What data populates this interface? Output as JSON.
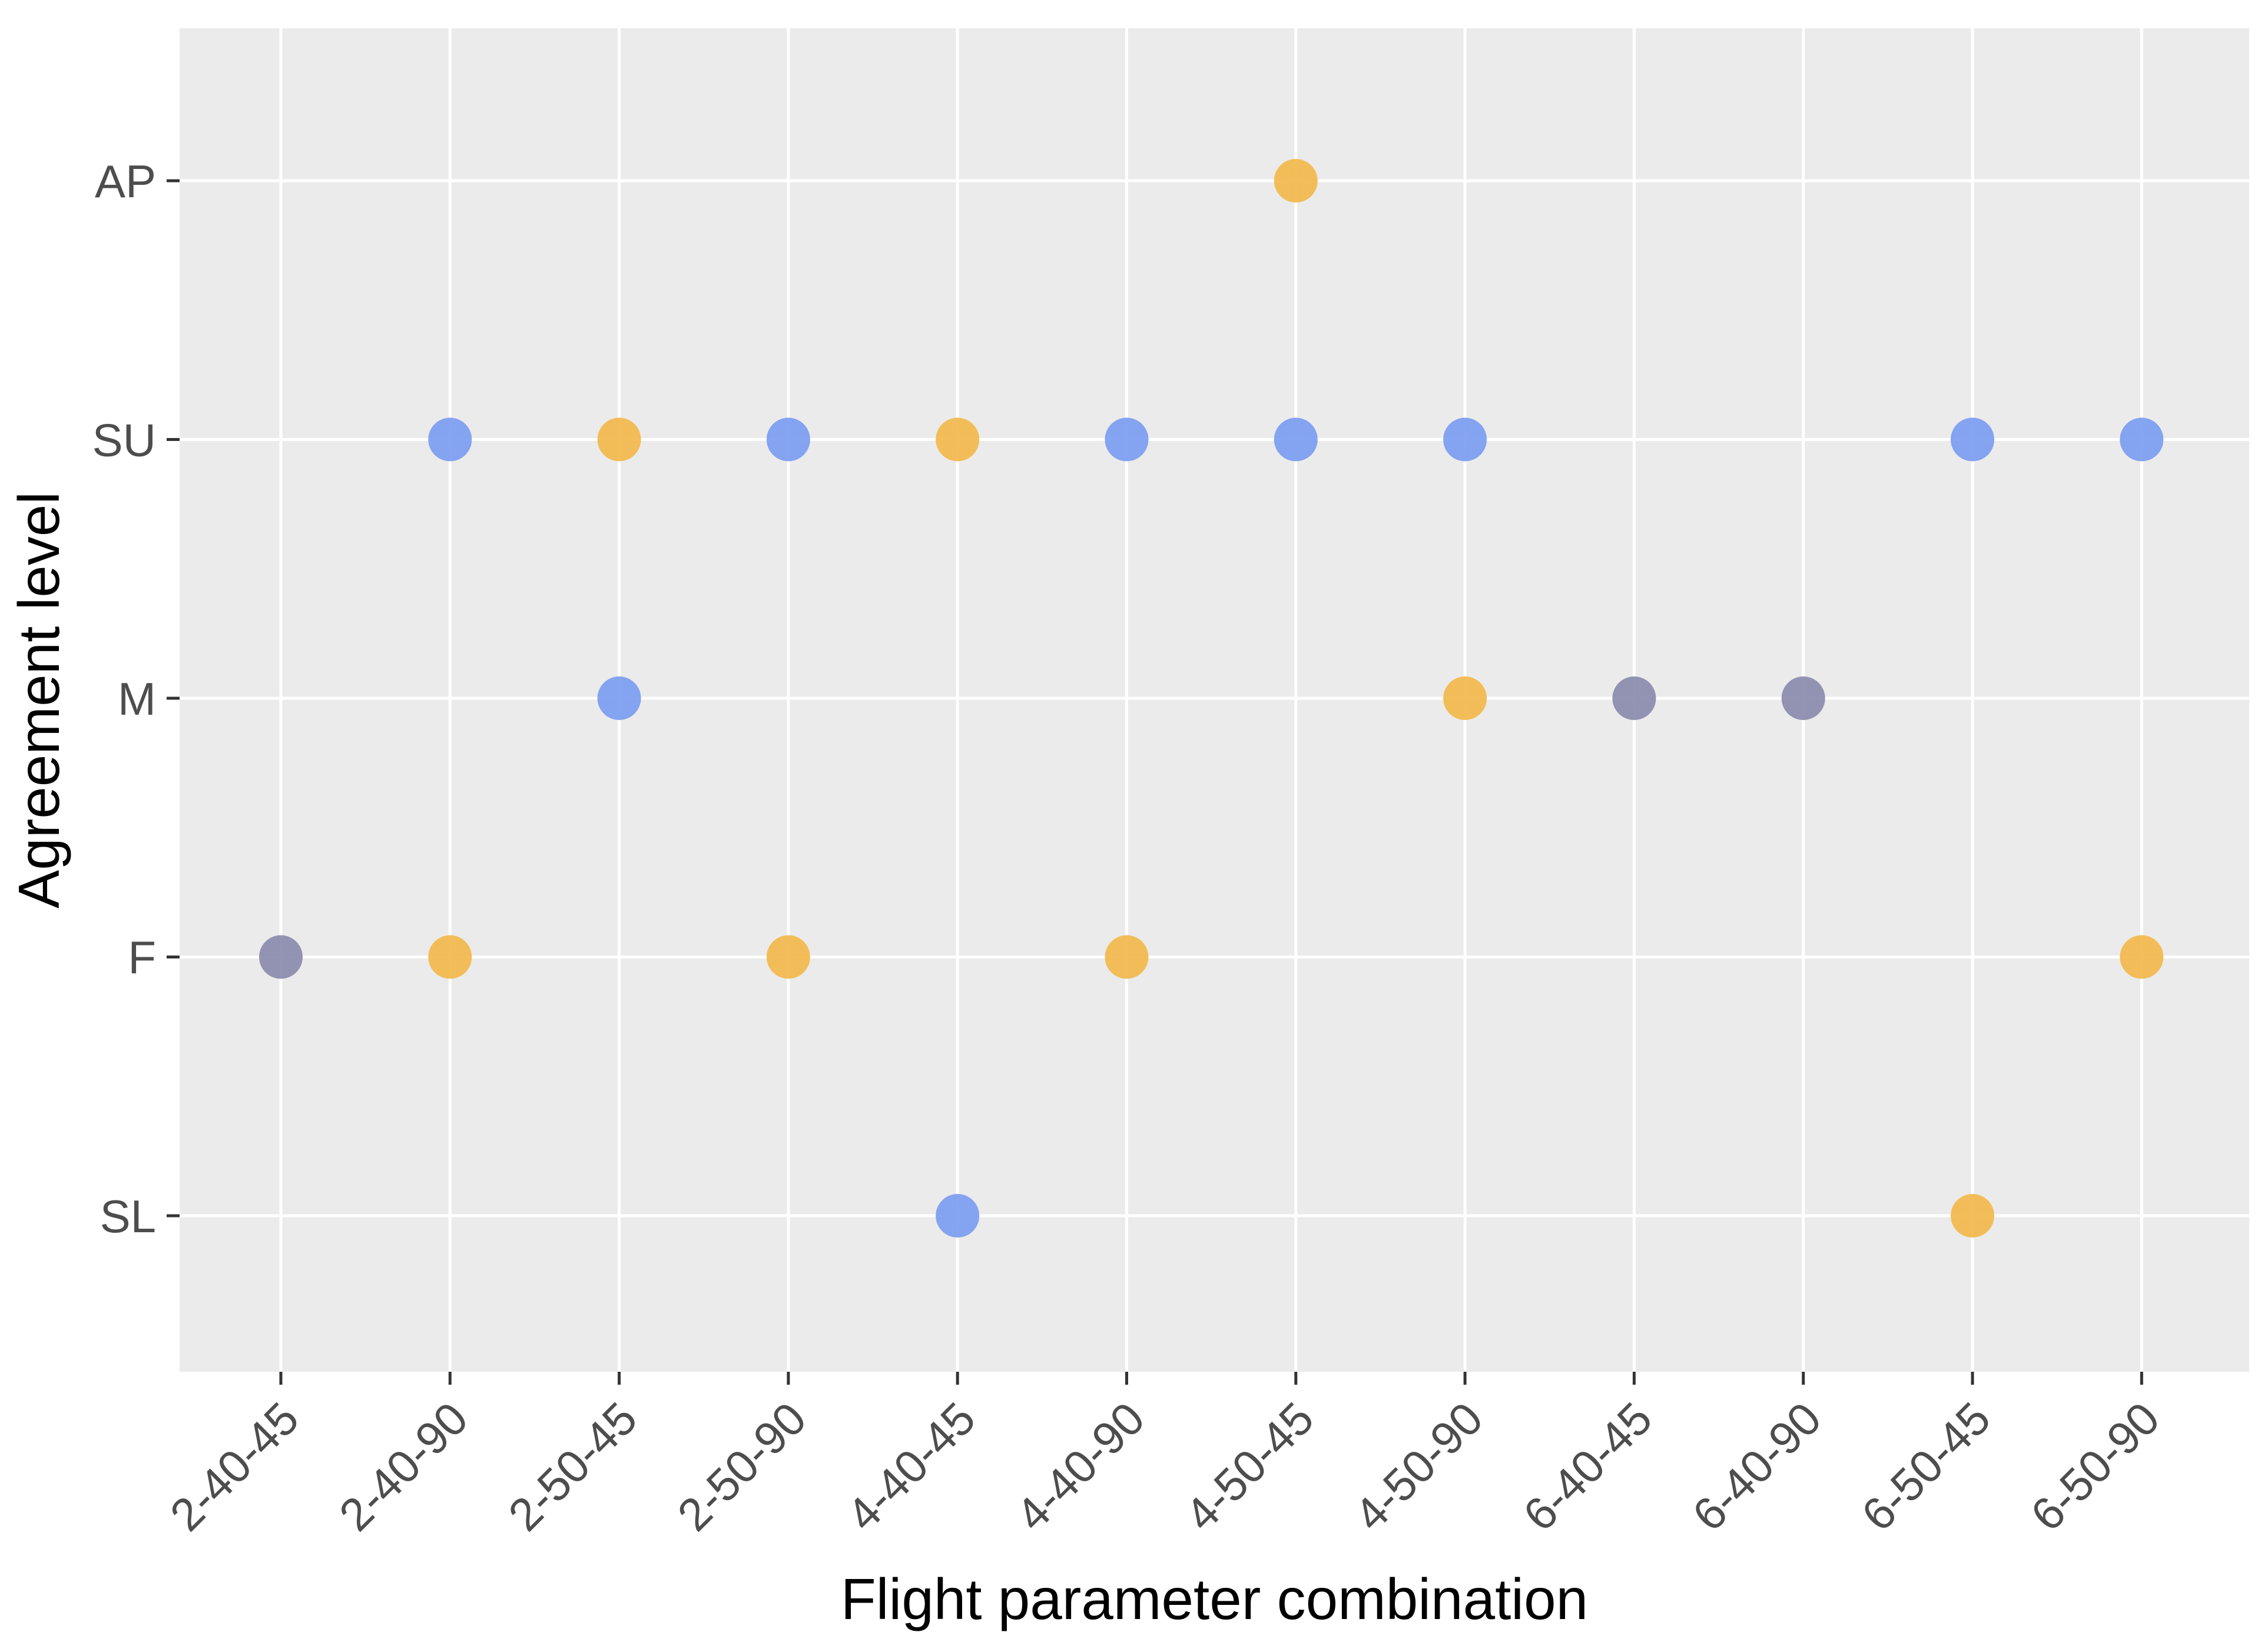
{
  "chart_data": {
    "type": "scatter",
    "title": "",
    "xlabel": "Flight parameter combination",
    "ylabel": "Agreement level",
    "categories": [
      "2-40-45",
      "2-40-90",
      "2-50-45",
      "2-50-90",
      "4-40-45",
      "4-40-90",
      "4-50-45",
      "4-50-90",
      "6-40-45",
      "6-40-90",
      "6-50-45",
      "6-50-90"
    ],
    "levels": [
      "SL",
      "F",
      "M",
      "SU",
      "AP"
    ],
    "grid": true,
    "legend": "none",
    "colors": {
      "blue": "#7b9cf0",
      "orange": "#f2b84b",
      "overlap": "#8a8aac",
      "panel": "#ebebeb",
      "grid": "#ffffff"
    },
    "series": [
      {
        "name": "blue",
        "points": [
          {
            "x": "2-40-90",
            "y": "SU"
          },
          {
            "x": "2-50-45",
            "y": "M"
          },
          {
            "x": "2-50-90",
            "y": "SU"
          },
          {
            "x": "4-40-45",
            "y": "SL"
          },
          {
            "x": "4-40-90",
            "y": "SU"
          },
          {
            "x": "4-50-45",
            "y": "SU"
          },
          {
            "x": "4-50-90",
            "y": "SU"
          },
          {
            "x": "6-50-45",
            "y": "SU"
          },
          {
            "x": "6-50-90",
            "y": "SU"
          }
        ]
      },
      {
        "name": "orange",
        "points": [
          {
            "x": "2-40-90",
            "y": "F"
          },
          {
            "x": "2-50-45",
            "y": "SU"
          },
          {
            "x": "2-50-90",
            "y": "F"
          },
          {
            "x": "4-40-45",
            "y": "SU"
          },
          {
            "x": "4-40-90",
            "y": "F"
          },
          {
            "x": "4-50-45",
            "y": "AP"
          },
          {
            "x": "4-50-90",
            "y": "M"
          },
          {
            "x": "6-50-45",
            "y": "SL"
          },
          {
            "x": "6-50-90",
            "y": "F"
          }
        ]
      },
      {
        "name": "overlap",
        "points": [
          {
            "x": "2-40-45",
            "y": "F"
          },
          {
            "x": "6-40-45",
            "y": "M"
          },
          {
            "x": "6-40-90",
            "y": "M"
          }
        ]
      }
    ]
  }
}
